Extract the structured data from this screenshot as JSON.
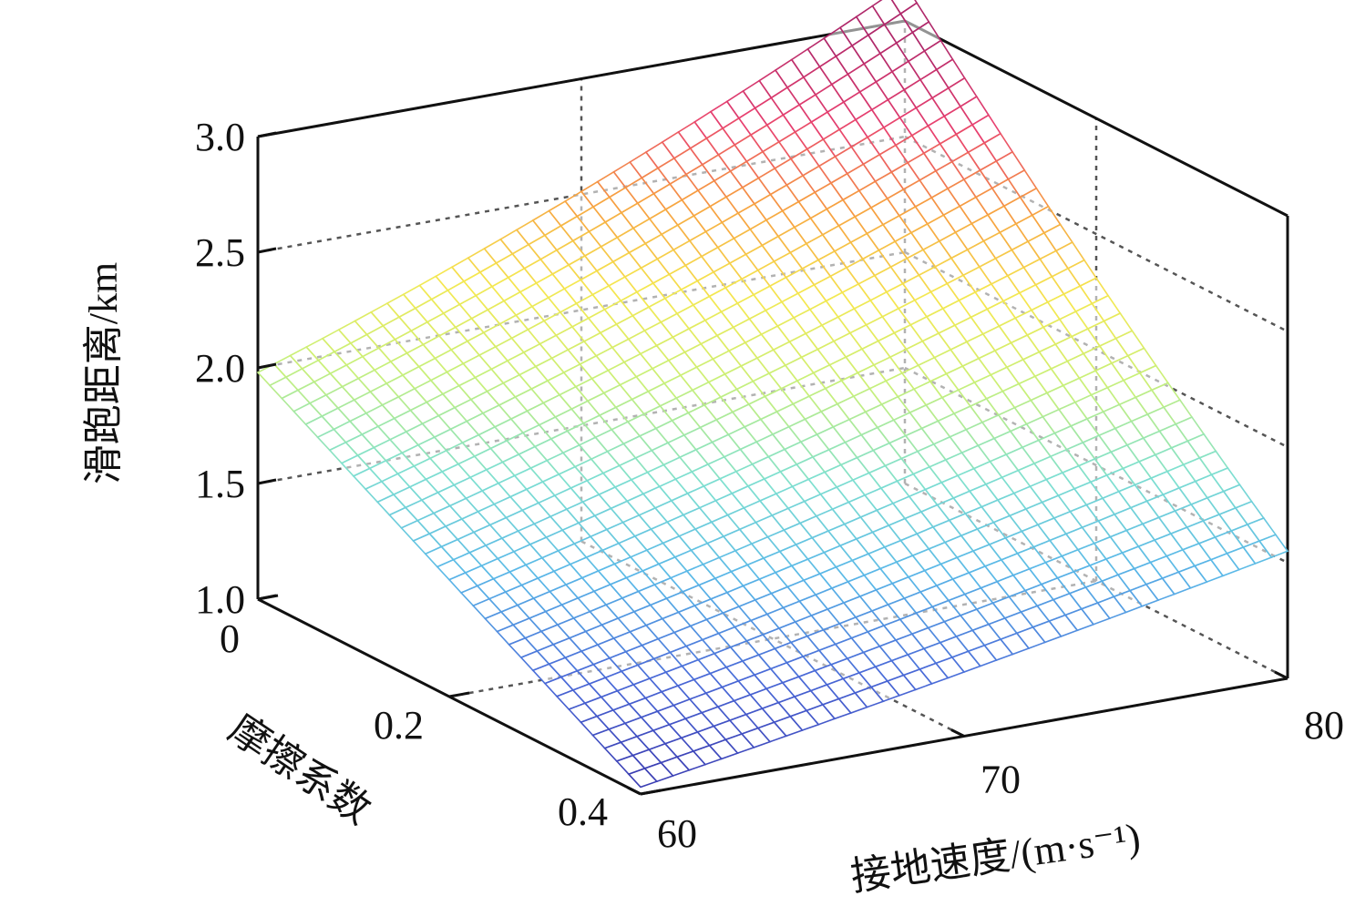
{
  "chart_data": {
    "type": "surface3d",
    "title": "",
    "xlabel": "接地速度/(m·s⁻¹)",
    "ylabel": "摩擦系数",
    "zlabel": "滑跑距离/km",
    "x_ticks": [
      "60",
      "70",
      "80"
    ],
    "y_ticks": [
      "0",
      "0.2",
      "0.4"
    ],
    "z_ticks": [
      "1.0",
      "1.5",
      "2.0",
      "2.5",
      "3.0"
    ],
    "x_range": [
      60,
      80
    ],
    "y_range": [
      0,
      0.4
    ],
    "z_range": [
      1.0,
      3.0
    ],
    "grid": true,
    "colormap": [
      "#3a3ab0",
      "#4a6ad8",
      "#5ab8e8",
      "#7fe0d0",
      "#c8f07a",
      "#f5e850",
      "#f7a040",
      "#e84070",
      "#b0286a"
    ],
    "surface_corners": [
      {
        "x": 60,
        "y": 0.0,
        "z": 1.98
      },
      {
        "x": 80,
        "y": 0.0,
        "z": 2.98
      },
      {
        "x": 60,
        "y": 0.4,
        "z": 1.03
      },
      {
        "x": 80,
        "y": 0.4,
        "z": 1.55
      }
    ]
  }
}
